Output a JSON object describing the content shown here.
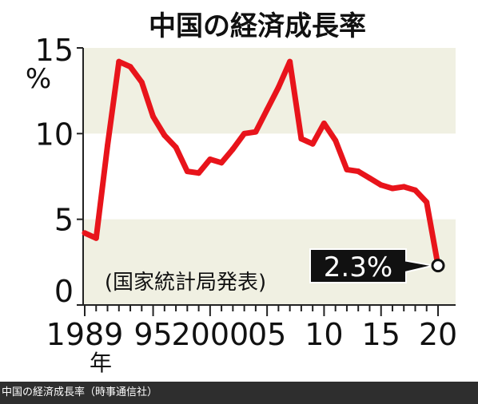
{
  "chart_data": {
    "type": "line",
    "title": "中国の経済成長率",
    "unit": "%",
    "source_note": "(国家統計局発表)",
    "x": [
      1989,
      1990,
      1991,
      1992,
      1993,
      1994,
      1995,
      1996,
      1997,
      1998,
      1999,
      2000,
      2001,
      2002,
      2003,
      2004,
      2005,
      2006,
      2007,
      2008,
      2009,
      2010,
      2011,
      2012,
      2013,
      2014,
      2015,
      2016,
      2017,
      2018,
      2019,
      2020
    ],
    "series": [
      {
        "values": [
          4.2,
          3.9,
          9.3,
          14.2,
          13.9,
          13.0,
          11.0,
          9.9,
          9.2,
          7.8,
          7.7,
          8.5,
          8.3,
          9.1,
          10.0,
          10.1,
          11.4,
          12.7,
          14.2,
          9.7,
          9.4,
          10.6,
          9.6,
          7.9,
          7.8,
          7.4,
          7.0,
          6.8,
          6.9,
          6.7,
          6.0,
          2.3
        ]
      }
    ],
    "ylim": [
      0,
      15
    ],
    "y_ticks": [
      "0",
      "5",
      "10",
      "15"
    ],
    "x_tick_labels": [
      {
        "year": 1989,
        "label": "1989"
      },
      {
        "year": 1995,
        "label": "95"
      },
      {
        "year": 2000,
        "label": "2000"
      },
      {
        "year": 2005,
        "label": "05"
      },
      {
        "year": 2010,
        "label": "10"
      },
      {
        "year": 2015,
        "label": "15"
      },
      {
        "year": 2020,
        "label": "20"
      }
    ],
    "first_year_suffix": "年",
    "callout": {
      "year": 2020,
      "label": "2.3%"
    },
    "line_color": "#e8141b",
    "band_color": "#f0f0e2"
  },
  "caption": "中国の経済成長率（時事通信社）"
}
